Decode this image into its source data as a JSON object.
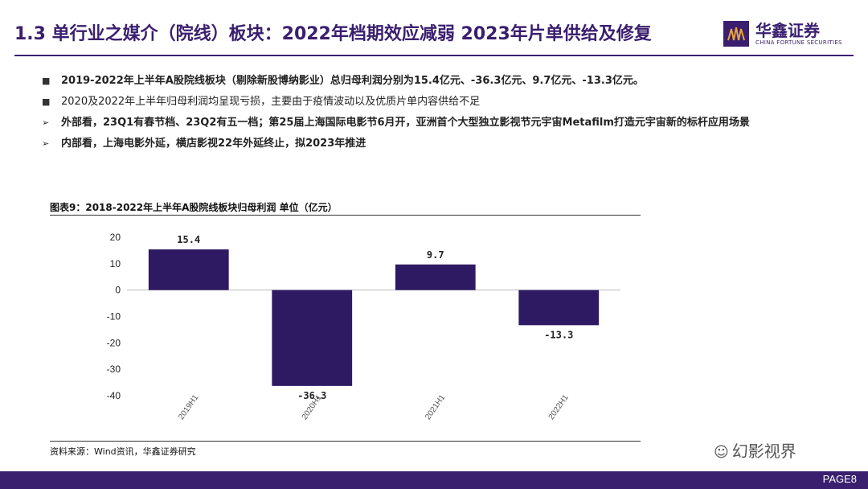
{
  "header": {
    "title": "1.3 单行业之媒介（院线）板块：2022年档期效应减弱 2023年片单供给及修复",
    "logo_name": "华鑫证券",
    "logo_en": "CHINA FORTUNE SECURITIES"
  },
  "bullets": [
    {
      "mark": "■",
      "text": "2019-2022年上半年A股院线板块（剔除新股博纳影业）总归母利润分别为15.4亿元、-36.3亿元、9.7亿元、-13.3亿元。"
    },
    {
      "mark": "■",
      "text": "2020及2022年上半年归母利润均呈现亏损，主要由于疫情波动以及优质片单内容供给不足"
    },
    {
      "mark": "➢",
      "text": "外部看，23Q1有春节档、23Q2有五一档；第25届上海国际电影节6月开，亚洲首个大型独立影视节元宇宙Metafilm打造元宇宙新的标杆应用场景"
    },
    {
      "mark": "➢",
      "text": "内部看，上海电影外延，横店影视22年外延终止，拟2023年推进"
    }
  ],
  "chart": {
    "title": "图表9：2018-2022年上半年A股院线板块归母利润 单位（亿元）",
    "source": "资料来源：Wind资讯，华鑫证券研究"
  },
  "chart_data": {
    "type": "bar",
    "categories": [
      "2019H1",
      "2020H1",
      "2021H1",
      "2022H1"
    ],
    "values": [
      15.4,
      -36.3,
      9.7,
      -13.3
    ],
    "data_labels": [
      "15.4",
      "-36.3",
      "9.7",
      "-13.3"
    ],
    "yticks": [
      20,
      10,
      0,
      -10,
      -20,
      -30,
      -40
    ],
    "ylim": [
      -40,
      20
    ],
    "bar_color": "#2d1a63",
    "grid": false
  },
  "watermark": {
    "text": "幻影视界"
  },
  "footer": {
    "page": "PAGE8"
  },
  "colors": {
    "brand": "#3a1f6e"
  }
}
